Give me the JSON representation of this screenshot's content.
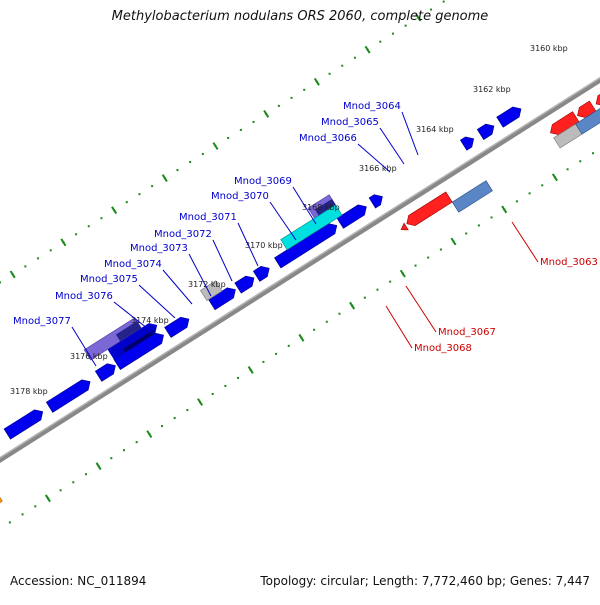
{
  "title": "Methylobacterium nodulans ORS 2060, complete genome",
  "footer": {
    "accession": "Accession: NC_011894",
    "summary": "Topology: circular; Length: 7,772,460 bp; Genes: 7,447"
  },
  "colors": {
    "backbone": "#888888",
    "tick": "#1a8a1a",
    "forward_label": "#0000cc",
    "reverse_label": "#cc0000",
    "tick_label": "#222222"
  },
  "kbp_ticks": [
    "3160 kbp",
    "3162 kbp",
    "3164 kbp",
    "3166 kbp",
    "3168 kbp",
    "3170 kbp",
    "3172 kbp",
    "3174 kbp",
    "3176 kbp",
    "3178 kbp"
  ],
  "forward_gene_labels": [
    "Mnod_3064",
    "Mnod_3065",
    "Mnod_3066",
    "Mnod_3069",
    "Mnod_3070",
    "Mnod_3071",
    "Mnod_3072",
    "Mnod_3073",
    "Mnod_3074",
    "Mnod_3075",
    "Mnod_3076",
    "Mnod_3077"
  ],
  "reverse_gene_labels": [
    "Mnod_3063",
    "Mnod_3067",
    "Mnod_3068"
  ]
}
